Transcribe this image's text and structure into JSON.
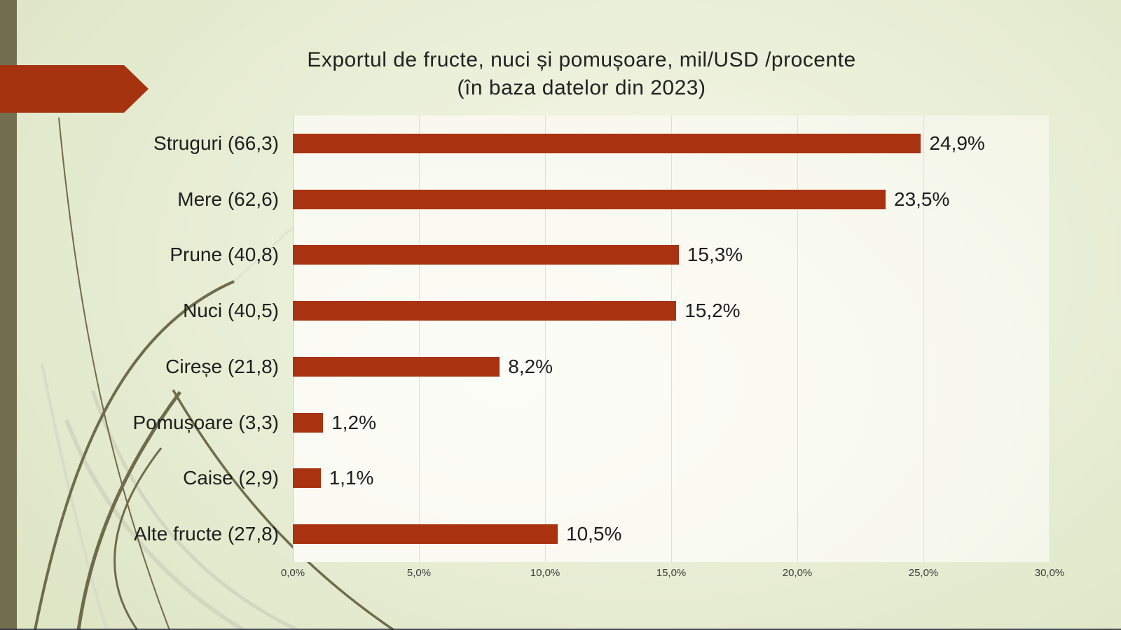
{
  "title": {
    "line1": "Exportul de fructe, nuci și pomușoare, mil/USD /procente",
    "line2": "(în baza datelor din 2023)"
  },
  "chart_data": {
    "type": "bar",
    "orientation": "horizontal",
    "title": "Exportul de fructe, nuci și pomușoare, mil/USD /procente (în baza datelor din 2023)",
    "categories": [
      "Struguri (66,3)",
      "Mere (62,6)",
      "Prune (40,8)",
      "Nuci (40,5)",
      "Cireșe (21,8)",
      "Pomușoare (3,3)",
      "Caise (2,9)",
      "Alte fructe (27,8)"
    ],
    "values": [
      24.9,
      23.5,
      15.3,
      15.2,
      8.2,
      1.2,
      1.1,
      10.5
    ],
    "value_labels": [
      "24,9%",
      "23,5%",
      "15,3%",
      "15,2%",
      "8,2%",
      "1,2%",
      "1,1%",
      "10,5%"
    ],
    "values_mil_usd": [
      66.3,
      62.6,
      40.8,
      40.5,
      21.8,
      3.3,
      2.9,
      27.8
    ],
    "x_ticks": [
      "0,0%",
      "5,0%",
      "10,0%",
      "15,0%",
      "20,0%",
      "25,0%",
      "30,0%"
    ],
    "xlim": [
      0,
      30
    ],
    "grid": true,
    "legend": false,
    "bar_color": "#A93311"
  },
  "decorations": {
    "arrow_color": "#A5330F",
    "left_strip_color": "#736E50",
    "grass_dark_color": "#6F6B4D",
    "grass_light_color": "#D3D7BF",
    "background_color": "#E9EED7",
    "plot_background_color": "#F9FAF2",
    "gridline_color": "#DEE0D2",
    "text_color": "#1E1E1E"
  }
}
